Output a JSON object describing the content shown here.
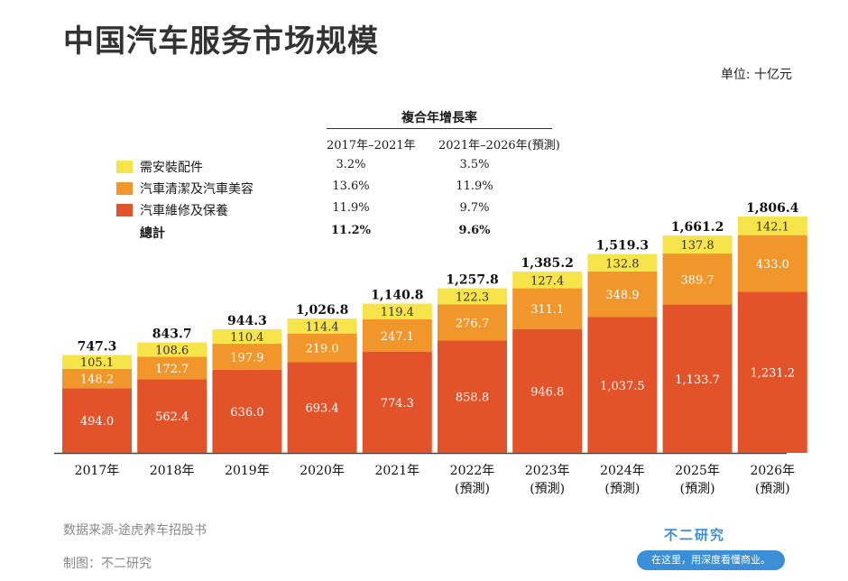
{
  "title": "中国汽车服务市场规模",
  "unit": "单位: 十亿元",
  "cagr": {
    "title": "複合年增長率",
    "periods": [
      "2017年–2021年",
      "2021年–2026年(預測)"
    ],
    "rows": [
      {
        "label": "需安裝配件",
        "color": "#f7e34a",
        "values": [
          "3.2%",
          "3.5%"
        ]
      },
      {
        "label": "汽車清潔及汽車美容",
        "color": "#f0962a",
        "values": [
          "13.6%",
          "11.9%"
        ]
      },
      {
        "label": "汽車維修及保養",
        "color": "#e2532a",
        "values": [
          "11.9%",
          "9.7%"
        ]
      },
      {
        "label": "總計",
        "color": null,
        "values": [
          "11.2%",
          "9.6%"
        ],
        "bold": true
      }
    ]
  },
  "chart_data": {
    "type": "bar",
    "stacked": true,
    "categories": [
      "2017年",
      "2018年",
      "2019年",
      "2020年",
      "2021年",
      "2022年",
      "2023年",
      "2024年",
      "2025年",
      "2026年"
    ],
    "category_sublabels": [
      "",
      "",
      "",
      "",
      "",
      "(預測)",
      "(預測)",
      "(預測)",
      "(預測)",
      "(預測)"
    ],
    "series": [
      {
        "name": "汽車維修及保養",
        "color": "#e2532a",
        "values": [
          494.0,
          562.4,
          636.0,
          693.4,
          774.3,
          858.8,
          946.8,
          1037.5,
          1133.7,
          1231.2
        ],
        "labels": [
          "494.0",
          "562.4",
          "636.0",
          "693.4",
          "774.3",
          "858.8",
          "946.8",
          "1,037.5",
          "1,133.7",
          "1,231.2"
        ]
      },
      {
        "name": "汽車清潔及汽車美容",
        "color": "#f0962a",
        "values": [
          148.2,
          172.7,
          197.9,
          219.0,
          247.1,
          276.7,
          311.1,
          348.9,
          389.7,
          433.0
        ],
        "labels": [
          "148.2",
          "172.7",
          "197.9",
          "219.0",
          "247.1",
          "276.7",
          "311.1",
          "348.9",
          "389.7",
          "433.0"
        ]
      },
      {
        "name": "需安裝配件",
        "color": "#f7e34a",
        "values": [
          105.1,
          108.6,
          110.4,
          114.4,
          119.4,
          122.3,
          127.4,
          132.8,
          137.8,
          142.1
        ],
        "labels": [
          "105.1",
          "108.6",
          "110.4",
          "114.4",
          "119.4",
          "122.3",
          "127.4",
          "132.8",
          "137.8",
          "142.1"
        ]
      }
    ],
    "totals": [
      747.3,
      843.7,
      944.3,
      1026.8,
      1140.8,
      1257.8,
      1385.2,
      1519.3,
      1661.2,
      1806.4
    ],
    "total_labels": [
      "747.3",
      "843.7",
      "944.3",
      "1,026.8",
      "1,140.8",
      "1,257.8",
      "1,385.2",
      "1,519.3",
      "1,661.2",
      "1,806.4"
    ],
    "ylim": [
      0,
      1806.4
    ],
    "xlabel": "",
    "ylabel": ""
  },
  "footer": {
    "source": "数据来源-途虎养车招股书",
    "maker": "制图：不二研究"
  },
  "badge": {
    "name": "不二研究",
    "tagline": "在这里，用深度看懂商业。"
  }
}
